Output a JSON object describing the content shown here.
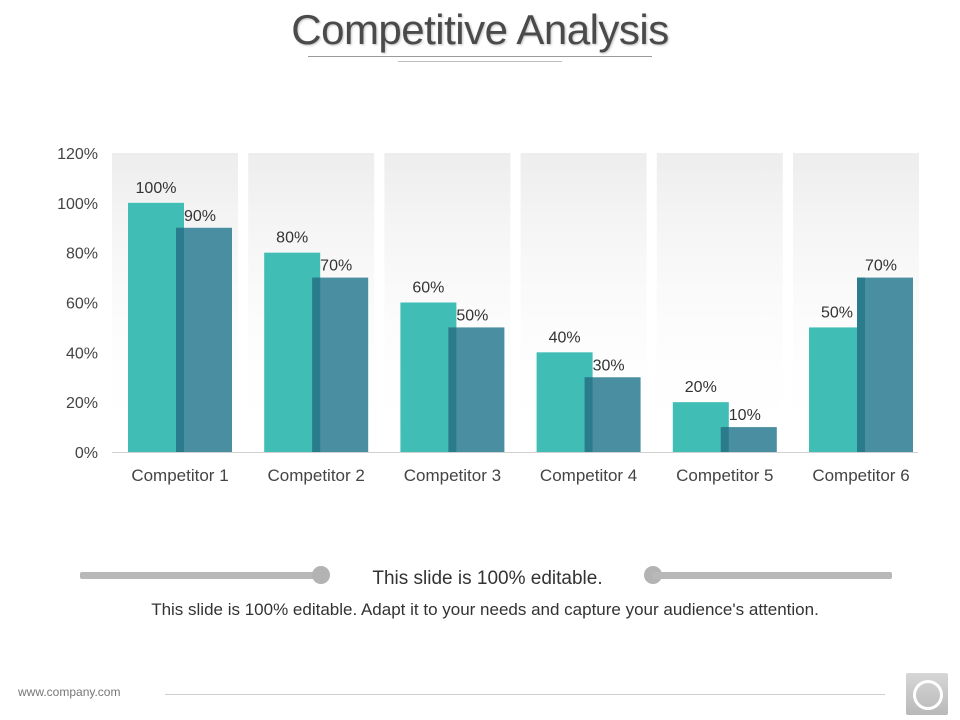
{
  "slide": {
    "title": "Competitive Analysis",
    "caption": "This slide is 100% editable.",
    "body": "This slide is 100% editable. Adapt it to your needs and capture your audience's attention.",
    "footer_url": "www.company.com"
  },
  "colors": {
    "series1": "#40BDB5",
    "series2": "#4A8FA1",
    "series2_shadow": "#2A7C8C",
    "band": "#EDEDED"
  },
  "chart_data": {
    "type": "bar",
    "categories": [
      "Competitor 1",
      "Competitor 2",
      "Competitor 3",
      "Competitor 4",
      "Competitor 5",
      "Competitor 6"
    ],
    "series": [
      {
        "values": [
          100,
          80,
          60,
          40,
          20,
          50
        ]
      },
      {
        "values": [
          90,
          70,
          50,
          30,
          10,
          70
        ]
      }
    ],
    "data_labels": [
      [
        "100%",
        "80%",
        "60%",
        "40%",
        "20%",
        "50%"
      ],
      [
        "90%",
        "70%",
        "50%",
        "30%",
        "10%",
        "70%"
      ]
    ],
    "yticks": [
      0,
      20,
      40,
      60,
      80,
      100,
      120
    ],
    "ytick_labels": [
      "0%",
      "20%",
      "40%",
      "60%",
      "80%",
      "100%",
      "120%"
    ],
    "ylim": [
      0,
      120
    ],
    "grid": false,
    "legend": "none"
  }
}
